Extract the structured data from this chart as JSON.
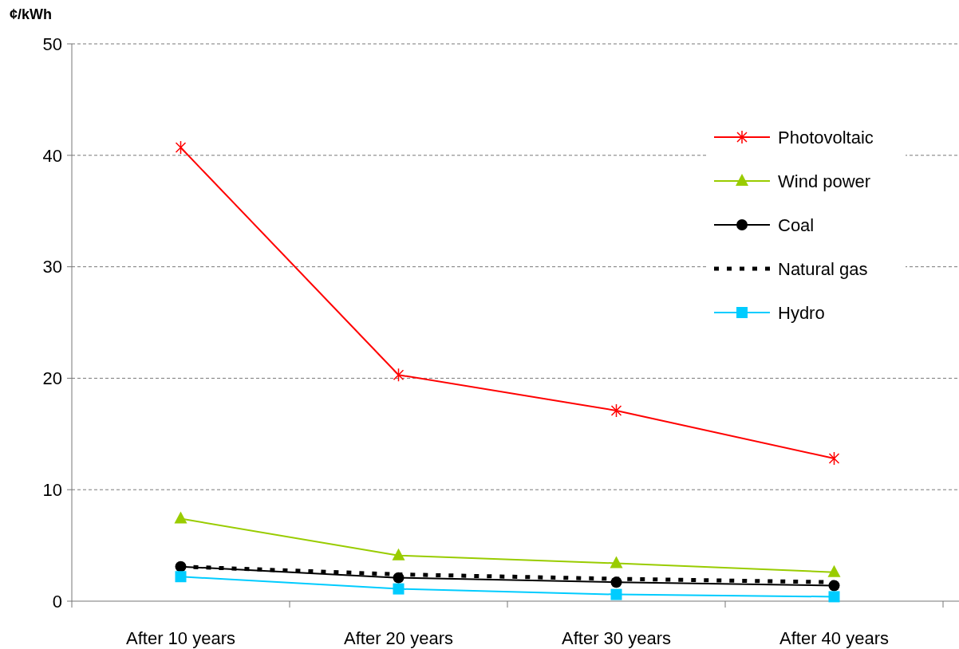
{
  "chart_data": {
    "type": "line",
    "ylabel": "¢/kWh",
    "categories": [
      "After 10 years",
      "After 20 years",
      "After 30 years",
      "After 40 years"
    ],
    "series": [
      {
        "name": "Photovoltaic",
        "color": "#ff0000",
        "marker": "cross",
        "values": [
          40.7,
          20.3,
          17.1,
          12.8
        ]
      },
      {
        "name": "Wind power",
        "color": "#99cc00",
        "marker": "triangle",
        "values": [
          7.4,
          4.1,
          3.4,
          2.6
        ]
      },
      {
        "name": "Coal",
        "color": "#000000",
        "marker": "circle",
        "values": [
          3.1,
          2.1,
          1.7,
          1.4
        ]
      },
      {
        "name": "Natural gas",
        "color": "#000000",
        "marker": "none",
        "line_style": "dashed",
        "values": [
          3.1,
          2.4,
          2.0,
          1.7
        ]
      },
      {
        "name": "Hydro",
        "color": "#00ccff",
        "marker": "square",
        "values": [
          2.2,
          1.1,
          0.6,
          0.4
        ]
      }
    ],
    "ylim": [
      0,
      50
    ],
    "yticks": [
      0,
      10,
      20,
      30,
      40,
      50
    ],
    "grid": "y",
    "legend": "top right"
  }
}
